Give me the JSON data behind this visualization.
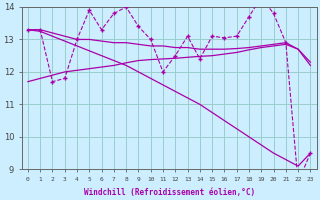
{
  "xlabel": "Windchill (Refroidissement éolien,°C)",
  "bg_color": "#cceeff",
  "line_color": "#aa00aa",
  "grid_color": "#99cccc",
  "x_values": [
    0,
    1,
    2,
    3,
    4,
    5,
    6,
    7,
    8,
    9,
    10,
    11,
    12,
    13,
    14,
    15,
    16,
    17,
    18,
    19,
    20,
    21,
    22,
    23
  ],
  "series_main": [
    13.3,
    13.3,
    11.7,
    11.8,
    13.0,
    13.9,
    13.3,
    13.8,
    14.0,
    13.4,
    13.0,
    12.0,
    12.5,
    13.1,
    12.4,
    13.1,
    13.05,
    13.1,
    13.7,
    14.3,
    13.8,
    12.9,
    8.6,
    9.5
  ],
  "trend_flat": [
    13.3,
    13.3,
    13.2,
    13.1,
    13.0,
    13.0,
    12.95,
    12.9,
    12.9,
    12.85,
    12.8,
    12.8,
    12.75,
    12.75,
    12.7,
    12.7,
    12.7,
    12.72,
    12.75,
    12.8,
    12.85,
    12.9,
    12.7,
    12.3
  ],
  "trend_rise": [
    11.7,
    11.8,
    11.9,
    12.0,
    12.05,
    12.1,
    12.15,
    12.2,
    12.28,
    12.35,
    12.38,
    12.4,
    12.42,
    12.45,
    12.48,
    12.5,
    12.55,
    12.6,
    12.68,
    12.75,
    12.8,
    12.85,
    12.7,
    12.2
  ],
  "trend_decline": [
    13.3,
    13.25,
    13.1,
    12.95,
    12.8,
    12.65,
    12.5,
    12.35,
    12.2,
    12.0,
    11.8,
    11.6,
    11.4,
    11.2,
    11.0,
    10.75,
    10.5,
    10.25,
    10.0,
    9.75,
    9.5,
    9.3,
    9.1,
    9.5
  ],
  "ylim": [
    9,
    14
  ],
  "yticks": [
    9,
    10,
    11,
    12,
    13,
    14
  ],
  "xlim": [
    -0.5,
    23.5
  ]
}
